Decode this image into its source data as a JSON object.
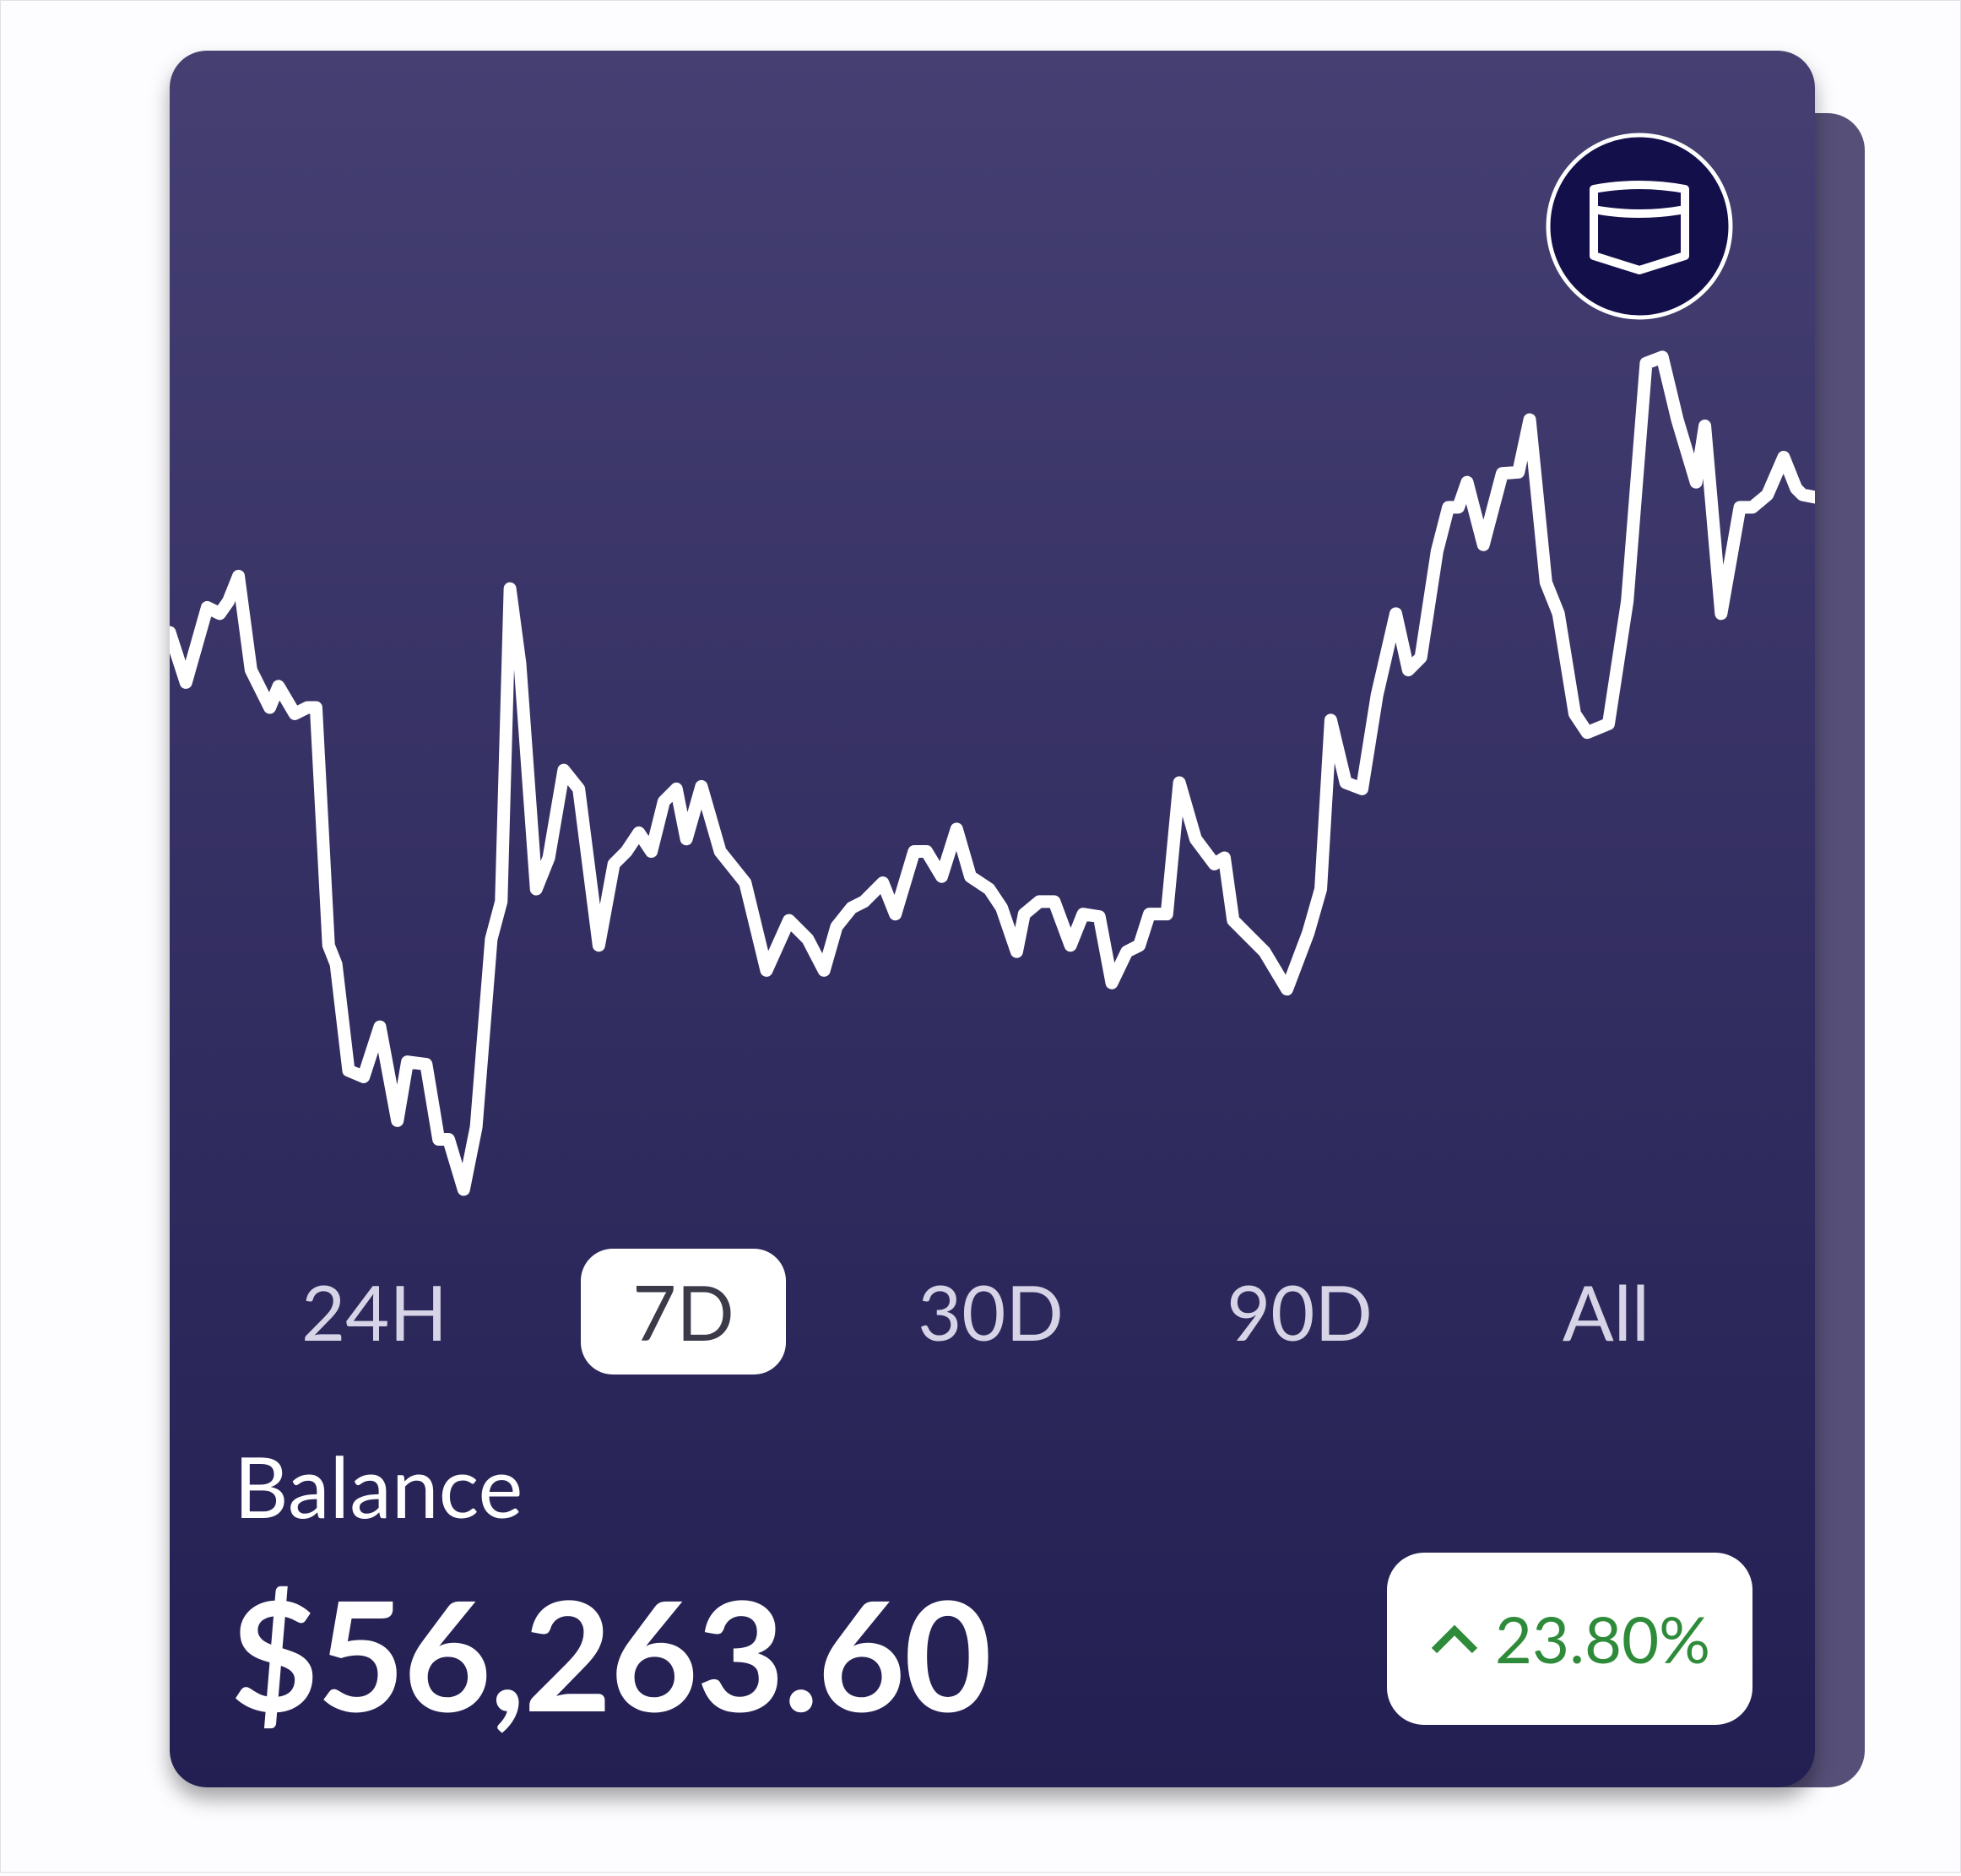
{
  "tabs": [
    {
      "label": "24H",
      "active": false
    },
    {
      "label": "7D",
      "active": true
    },
    {
      "label": "30D",
      "active": false
    },
    {
      "label": "90D",
      "active": false
    },
    {
      "label": "All",
      "active": false
    }
  ],
  "balance": {
    "label": "Balance",
    "amount": "$56,263.60"
  },
  "change": {
    "label": "23.80%"
  },
  "chart_data": {
    "type": "line",
    "color": "#ffffff",
    "x": [
      0,
      13,
      30,
      40,
      47,
      55,
      65,
      80,
      87,
      100,
      110,
      117,
      127,
      133,
      143,
      155,
      168,
      182,
      190,
      205,
      215,
      223,
      235,
      245,
      257,
      265,
      272,
      280,
      293,
      303,
      315,
      327,
      343,
      355,
      365,
      375,
      385,
      395,
      405,
      413,
      425,
      440,
      460,
      477,
      495,
      510,
      523,
      533,
      545,
      555,
      570,
      580,
      595,
      605,
      617,
      629,
      640,
      655,
      665,
      677,
      683,
      695,
      707,
      720,
      730,
      743,
      753,
      765,
      775,
      783,
      797,
      807,
      820,
      835,
      843,
      850,
      860,
      875,
      893,
      910,
      920,
      928,
      940,
      953,
      965,
      980,
      990,
      1000,
      1013,
      1022,
      1030,
      1037,
      1050,
      1065,
      1078,
      1087,
      1100,
      1110,
      1123,
      1133,
      1150,
      1165,
      1180,
      1193,
      1205,
      1220,
      1227,
      1240,
      1255,
      1265,
      1277,
      1290,
      1300,
      1305,
      1315
    ],
    "values": [
      49.5,
      45.5,
      51.5,
      51,
      52,
      54,
      46.5,
      43.5,
      45.2,
      43,
      43.5,
      43.5,
      24.5,
      23,
      14.5,
      14,
      18,
      10.5,
      15.2,
      15,
      9,
      9,
      5,
      10,
      25,
      28,
      53,
      47,
      29,
      31.5,
      38.5,
      37,
      24.5,
      31,
      32,
      33.5,
      32,
      36,
      37,
      33,
      37.2,
      32,
      29.5,
      22.5,
      26.5,
      25,
      22.5,
      26,
      27.5,
      28,
      29.5,
      27,
      32,
      32,
      30,
      33.8,
      30,
      29,
      27.5,
      24,
      27,
      28,
      28,
      24.5,
      27,
      26.8,
      21.5,
      24,
      24.5,
      27,
      27,
      37.5,
      33,
      31,
      31.5,
      26.5,
      25.5,
      24,
      21,
      25.5,
      29,
      42.5,
      37.5,
      37,
      44.5,
      51,
      46.5,
      47.5,
      56,
      59.5,
      59.5,
      61.5,
      56.5,
      62.2,
      62.3,
      66.5,
      53.5,
      51,
      43,
      41.5,
      42.2,
      52,
      71,
      71.5,
      66.5,
      61.5,
      66,
      51,
      59.5,
      59.5,
      60.5,
      63.5,
      61,
      60.5,
      60.3
    ],
    "xlim": [
      0,
      1315
    ],
    "ylim": [
      0,
      75
    ]
  }
}
